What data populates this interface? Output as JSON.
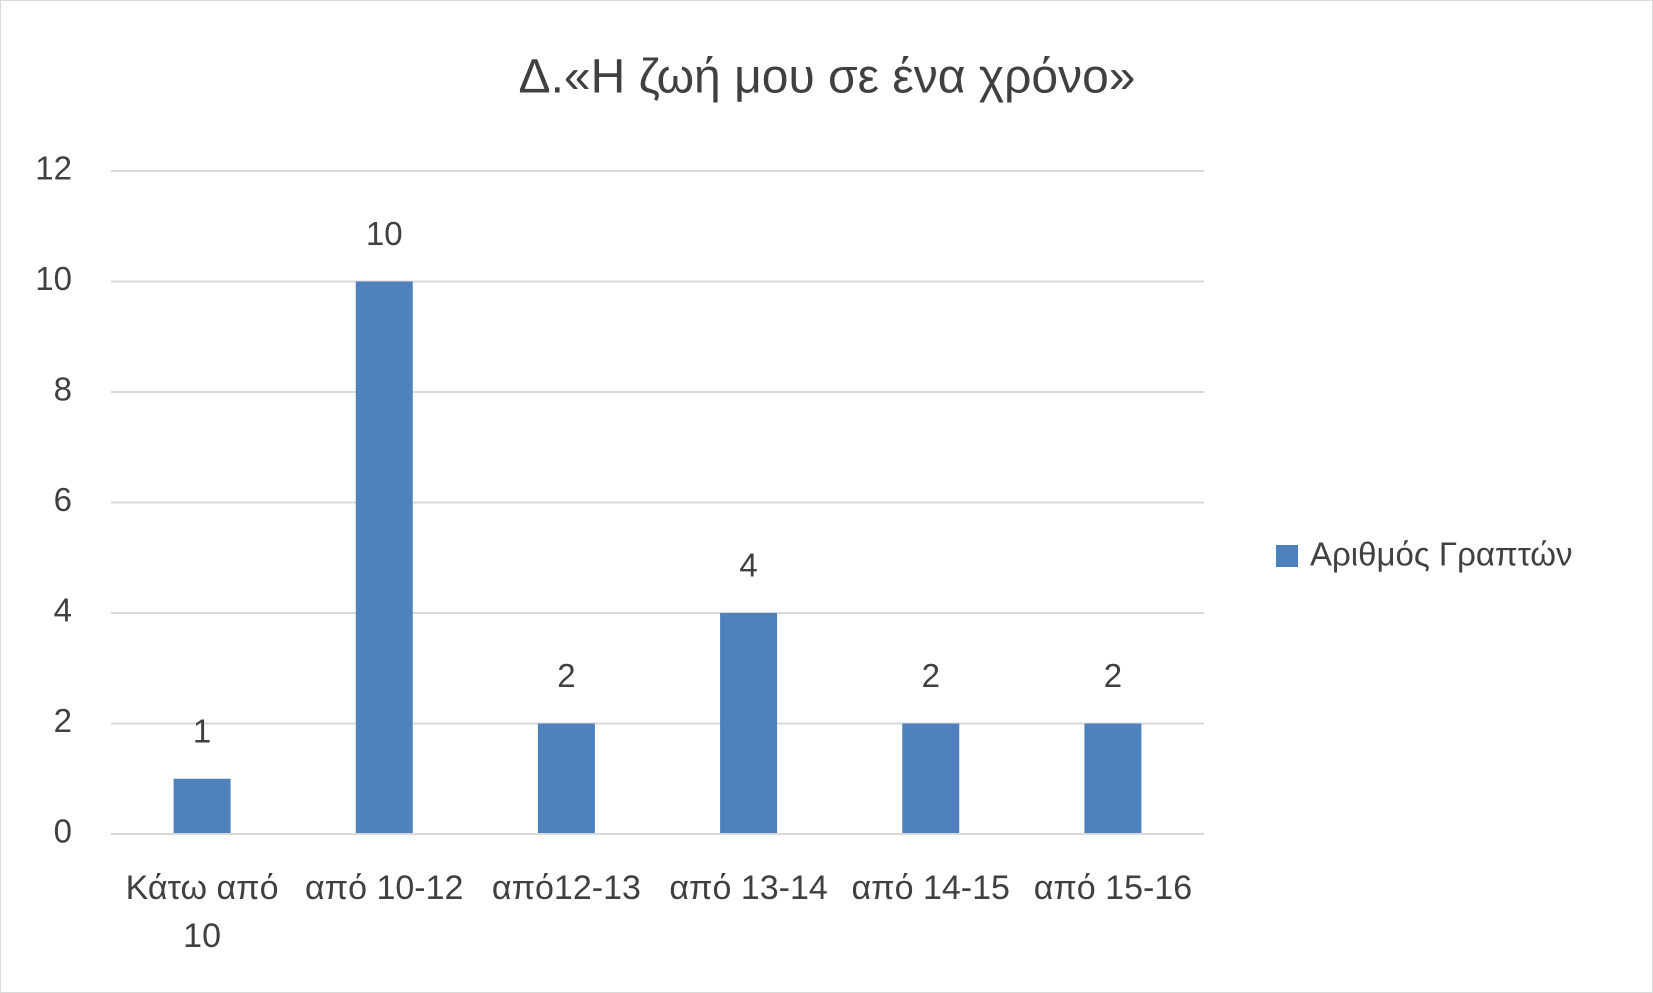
{
  "chart_data": {
    "type": "bar",
    "title": "Δ.«Η ζωή μου σε ένα χρόνο»",
    "categories": [
      "Κάτω από 10",
      "από 10-12",
      "από12-13",
      "από 13-14",
      "από 14-15",
      "από 15-16"
    ],
    "series": [
      {
        "name": "Αριθμός Γραπτών",
        "color": "#4f81bd",
        "values": [
          1,
          10,
          2,
          4,
          2,
          2
        ]
      }
    ],
    "ylim": [
      0,
      12
    ],
    "yticks": [
      0,
      2,
      4,
      6,
      8,
      10,
      12
    ],
    "grid": true,
    "legend": "right"
  }
}
